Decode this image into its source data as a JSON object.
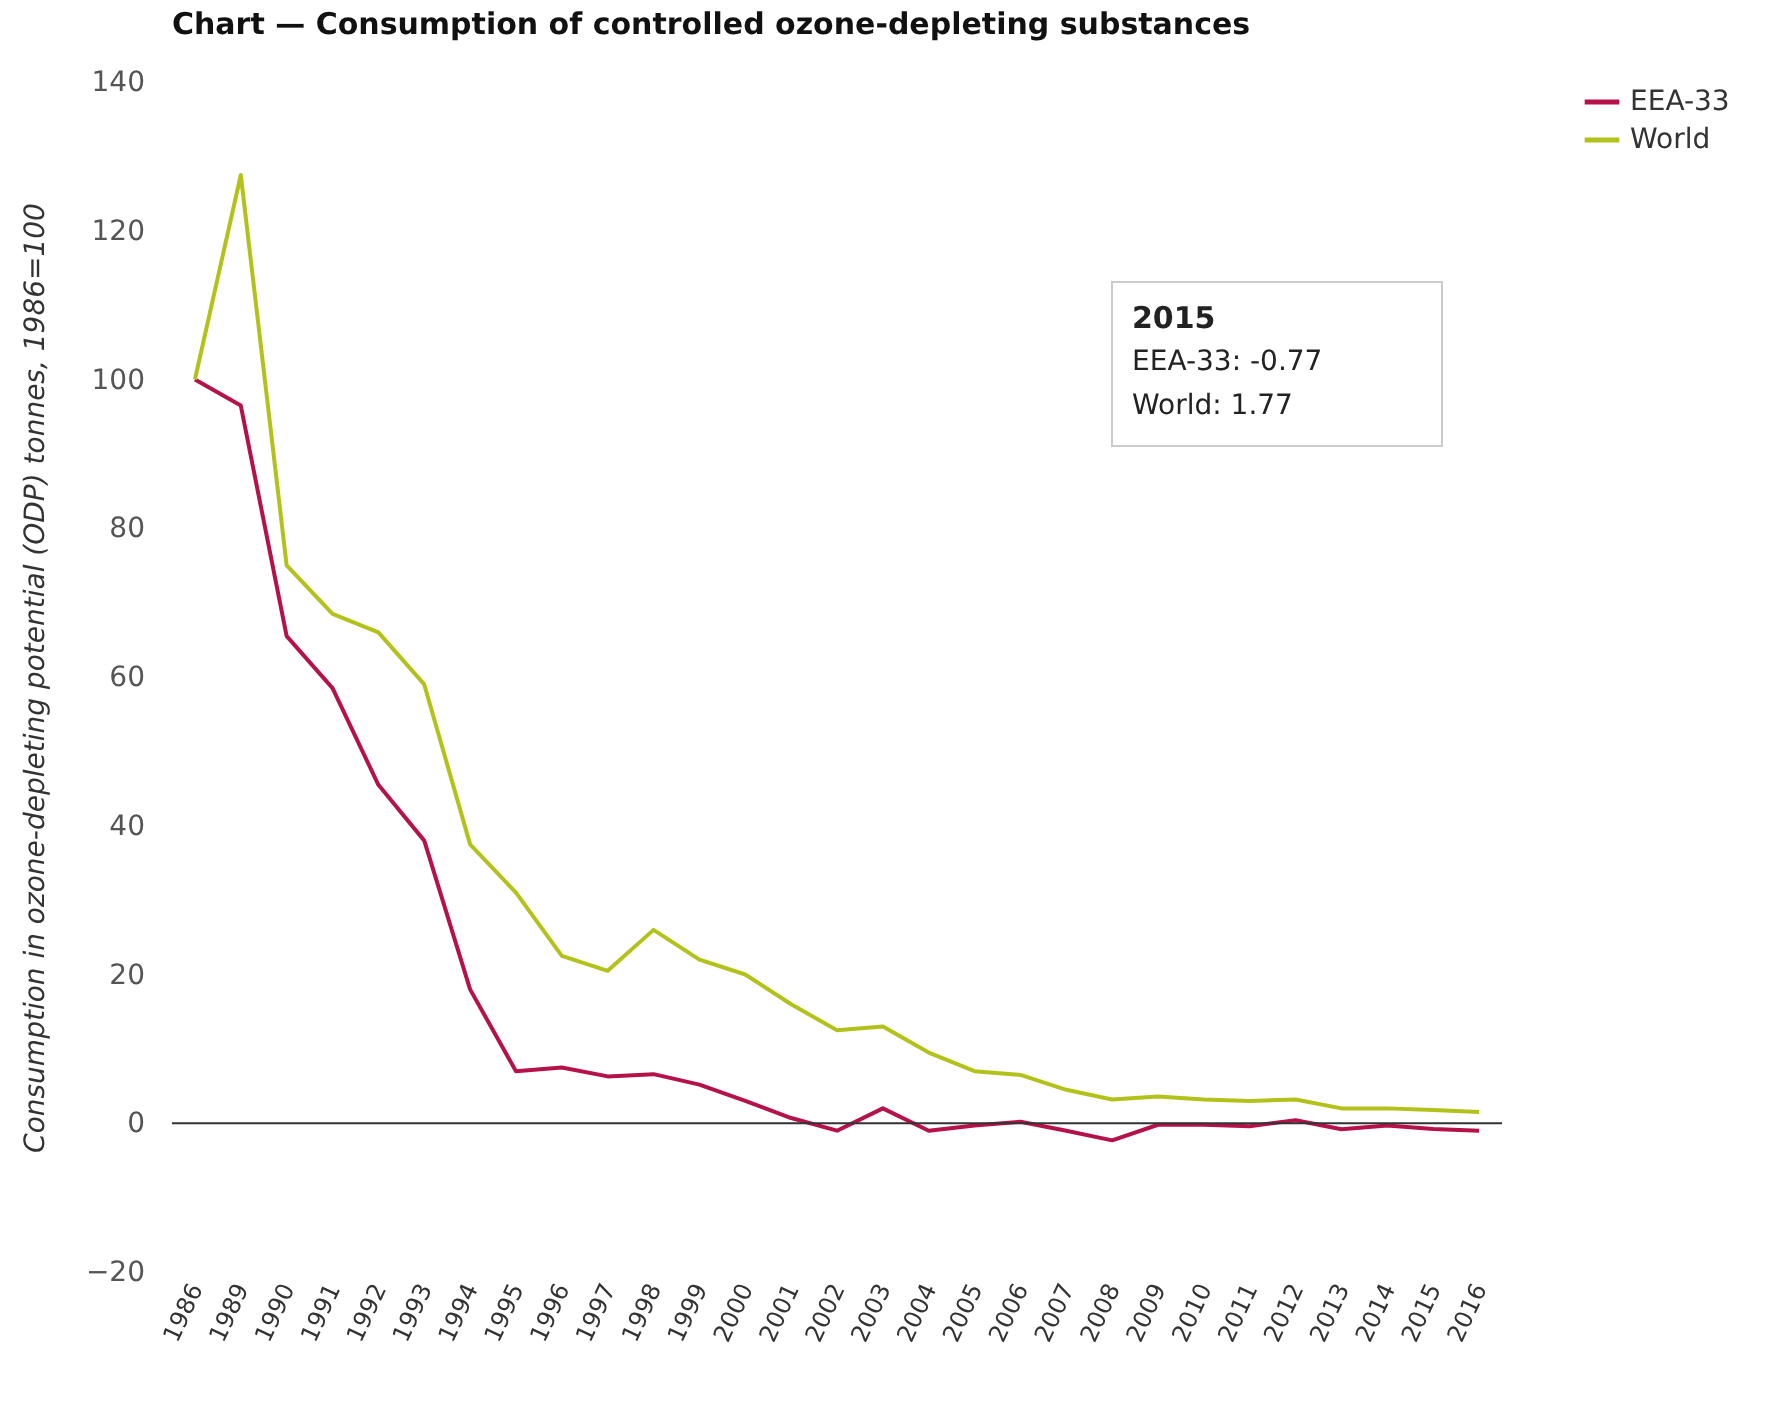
{
  "chart_data": {
    "type": "line",
    "title": "Chart — Consumption of controlled ozone-depleting substances",
    "ylabel": "Consumption in ozone-depleting potential (ODP) tonnes, 1986=100",
    "categories": [
      "1986",
      "1989",
      "1990",
      "1991",
      "1992",
      "1993",
      "1994",
      "1995",
      "1996",
      "1997",
      "1998",
      "1999",
      "2000",
      "2001",
      "2002",
      "2003",
      "2004",
      "2005",
      "2006",
      "2007",
      "2008",
      "2009",
      "2010",
      "2011",
      "2012",
      "2013",
      "2014",
      "2015",
      "2016"
    ],
    "series": [
      {
        "name": "EEA-33",
        "color": "#b5124a",
        "values": [
          100,
          96.5,
          65.5,
          58.5,
          45.5,
          38,
          18,
          7,
          7.5,
          6.3,
          6.6,
          5.2,
          3,
          0.7,
          -1,
          2,
          -1,
          -0.3,
          0.2,
          -1,
          -2.3,
          -0.2,
          -0.2,
          -0.4,
          0.4,
          -0.8,
          -0.3,
          -0.77,
          -1
        ]
      },
      {
        "name": "World",
        "color": "#b3c21a",
        "values": [
          100,
          127.5,
          75,
          68.5,
          66,
          59,
          37.5,
          31,
          22.5,
          20.5,
          26,
          22,
          20,
          16,
          12.5,
          13,
          9.5,
          7,
          6.5,
          4.5,
          3.2,
          3.6,
          3.2,
          3,
          3.2,
          2,
          2,
          1.77,
          1.5
        ]
      }
    ],
    "ylim": [
      -20,
      140
    ],
    "yticks": [
      -20,
      0,
      20,
      40,
      60,
      80,
      100,
      120,
      140
    ],
    "ref_lines": [
      {
        "axis": "y",
        "value": 0,
        "color": "#333333"
      }
    ],
    "annotations": [
      "2015",
      "EEA-33: -0.77",
      "World: 1.77"
    ],
    "legend": "top right",
    "grid": false
  }
}
